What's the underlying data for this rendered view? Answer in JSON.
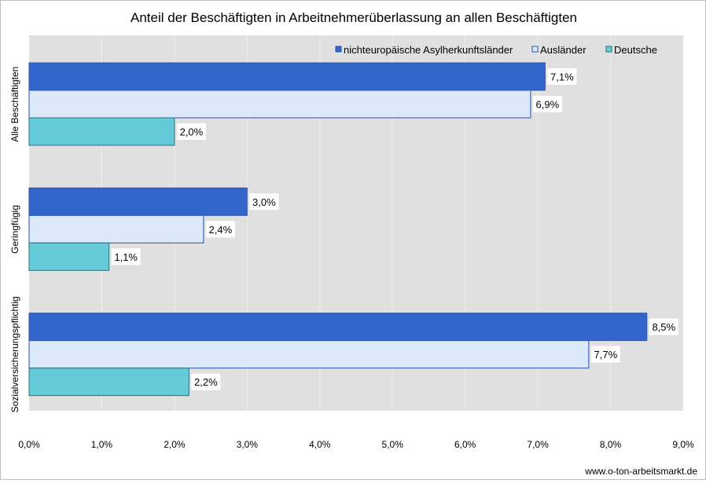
{
  "chart_data": {
    "type": "bar",
    "orientation": "horizontal",
    "title": "Anteil der Beschäftigten in Arbeitnehmerüberlassung an allen Beschäftigten",
    "categories": [
      "Alle Beschäftigten",
      "Geringfügig",
      "Sozialversicherungspflichtig"
    ],
    "series": [
      {
        "name": "nichteuropäische Asylherkunftsländer",
        "values": [
          7.1,
          3.0,
          8.5
        ],
        "labels": [
          "7,1%",
          "3,0%",
          "8,5%"
        ],
        "color": "#3366cc",
        "stroke": "#2a54a8"
      },
      {
        "name": "Ausländer",
        "values": [
          6.9,
          2.4,
          7.7
        ],
        "labels": [
          "6,9%",
          "2,4%",
          "7,7%"
        ],
        "color": "#dce9fb",
        "stroke": "#2a54a8"
      },
      {
        "name": "Deutsche",
        "values": [
          2.0,
          1.1,
          2.2
        ],
        "labels": [
          "2,0%",
          "1,1%",
          "2,2%"
        ],
        "color": "#66cbd9",
        "stroke": "#2a6f7a"
      }
    ],
    "xlim": [
      0,
      9
    ],
    "ticks": [
      "0,0%",
      "1,0%",
      "2,0%",
      "3,0%",
      "4,0%",
      "5,0%",
      "6,0%",
      "7,0%",
      "8,0%",
      "9,0%"
    ],
    "grid": true,
    "legend_position": "top-right",
    "plot_background": "#e0e0e0"
  },
  "footer": {
    "source": "www.o-ton-arbeitsmarkt.de"
  }
}
